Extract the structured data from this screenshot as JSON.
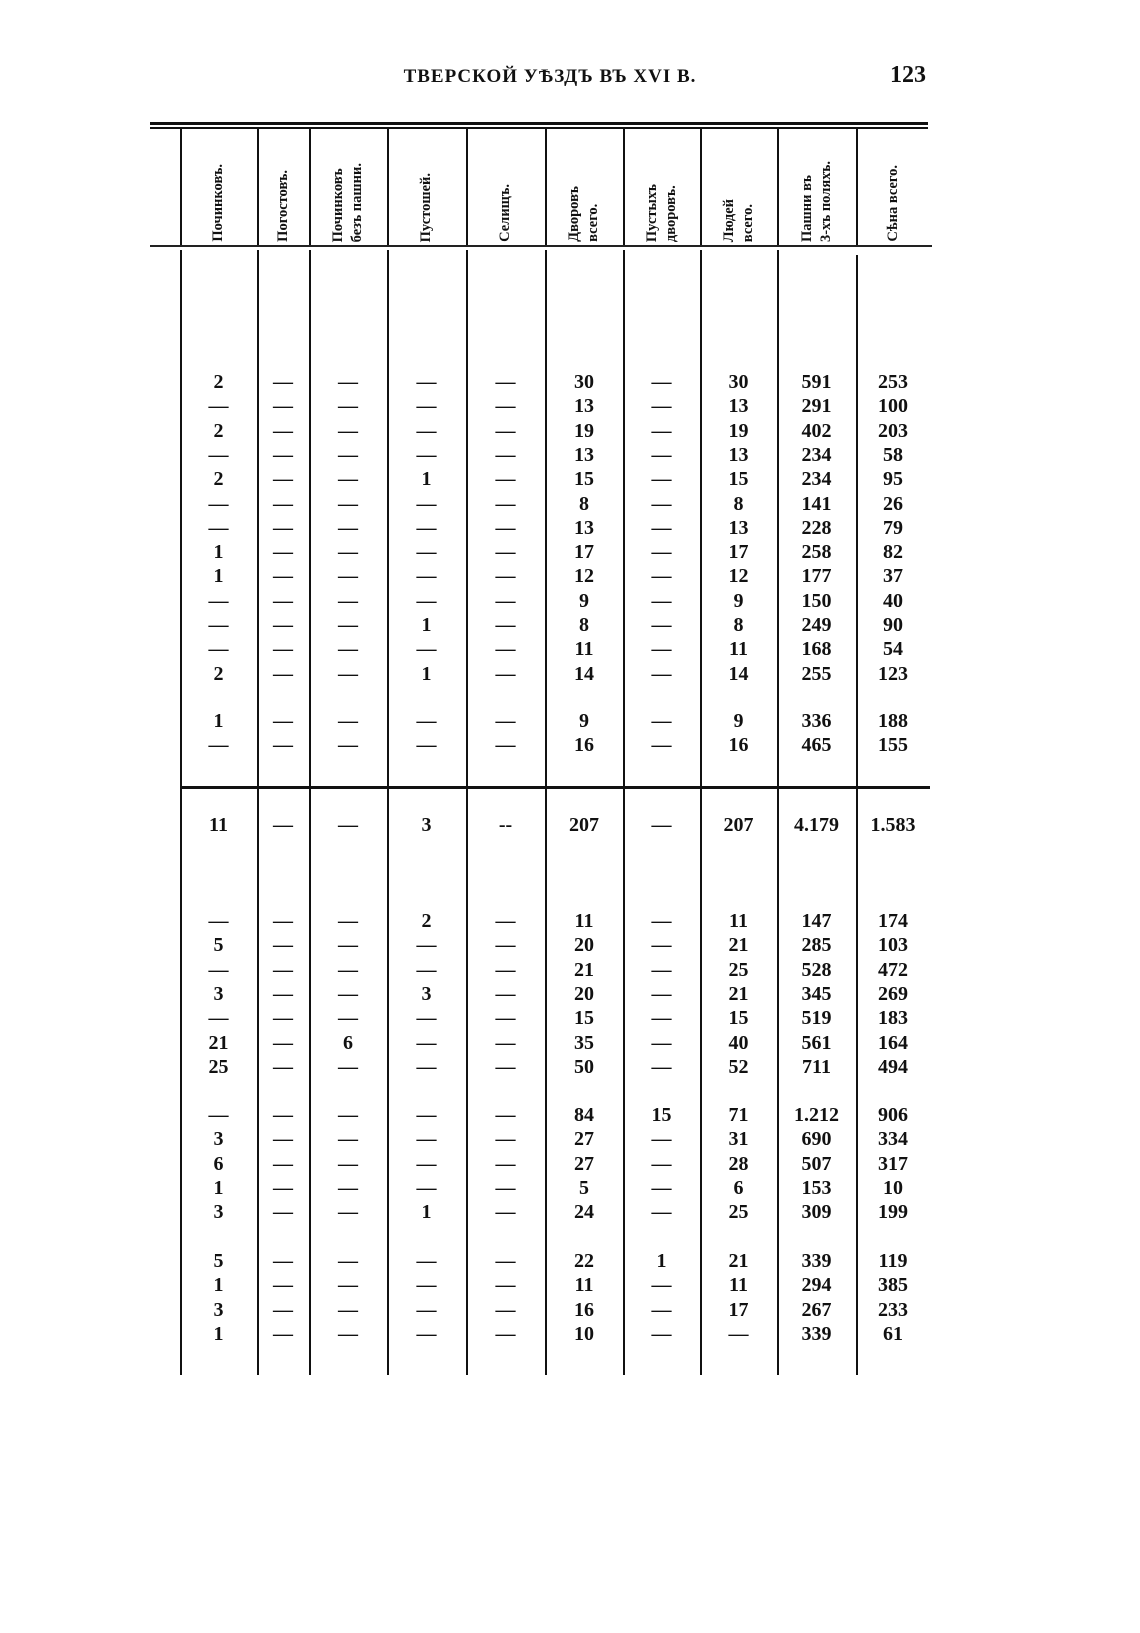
{
  "header": {
    "running_title": "ТВЕРСКОЙ УѢЗДЪ ВЪ XVI В.",
    "page_number": "123"
  },
  "columns": [
    "Починковъ.",
    "Погостовъ.",
    "Починковъ\nбезъ пашни.",
    "Пустошей.",
    "Селищъ.",
    "Дворовъ\nвсего.",
    "Пустыхъ\nдворовъ.",
    "Людей\nвсего.",
    "Пашни въ\n3-хъ поляхъ.",
    "Сѣна всего."
  ],
  "groups": [
    [
      [
        "2",
        "—",
        "—",
        "—",
        "—",
        "30",
        "—",
        "30",
        "591",
        "253"
      ],
      [
        "—",
        "—",
        "—",
        "—",
        "—",
        "13",
        "—",
        "13",
        "291",
        "100"
      ],
      [
        "2",
        "—",
        "—",
        "—",
        "—",
        "19",
        "—",
        "19",
        "402",
        "203"
      ],
      [
        "—",
        "—",
        "—",
        "—",
        "—",
        "13",
        "—",
        "13",
        "234",
        "58"
      ],
      [
        "2",
        "—",
        "—",
        "1",
        "—",
        "15",
        "—",
        "15",
        "234",
        "95"
      ],
      [
        "—",
        "—",
        "—",
        "—",
        "—",
        "8",
        "—",
        "8",
        "141",
        "26"
      ],
      [
        "—",
        "—",
        "—",
        "—",
        "—",
        "13",
        "—",
        "13",
        "228",
        "79"
      ],
      [
        "1",
        "—",
        "—",
        "—",
        "—",
        "17",
        "—",
        "17",
        "258",
        "82"
      ],
      [
        "1",
        "—",
        "—",
        "—",
        "—",
        "12",
        "—",
        "12",
        "177",
        "37"
      ],
      [
        "—",
        "—",
        "—",
        "—",
        "—",
        "9",
        "—",
        "9",
        "150",
        "40"
      ],
      [
        "—",
        "—",
        "—",
        "1",
        "—",
        "8",
        "—",
        "8",
        "249",
        "90"
      ],
      [
        "—",
        "—",
        "—",
        "—",
        "—",
        "11",
        "—",
        "11",
        "168",
        "54"
      ],
      [
        "2",
        "—",
        "—",
        "1",
        "—",
        "14",
        "—",
        "14",
        "255",
        "123"
      ]
    ],
    [
      [
        "1",
        "—",
        "—",
        "—",
        "—",
        "9",
        "—",
        "9",
        "336",
        "188"
      ],
      [
        "—",
        "—",
        "—",
        "—",
        "—",
        "16",
        "—",
        "16",
        "465",
        "155"
      ]
    ],
    [
      [
        "11",
        "—",
        "—",
        "3",
        "--",
        "207",
        "—",
        "207",
        "4.179",
        "1.583"
      ]
    ],
    [
      [
        "—",
        "—",
        "—",
        "2",
        "—",
        "11",
        "—",
        "11",
        "147",
        "174"
      ],
      [
        "5",
        "—",
        "—",
        "—",
        "—",
        "20",
        "—",
        "21",
        "285",
        "103"
      ],
      [
        "—",
        "—",
        "—",
        "—",
        "—",
        "21",
        "—",
        "25",
        "528",
        "472"
      ],
      [
        "3",
        "—",
        "—",
        "3",
        "—",
        "20",
        "—",
        "21",
        "345",
        "269"
      ],
      [
        "—",
        "—",
        "—",
        "—",
        "—",
        "15",
        "—",
        "15",
        "519",
        "183"
      ],
      [
        "21",
        "—",
        "6",
        "—",
        "—",
        "35",
        "—",
        "40",
        "561",
        "164"
      ],
      [
        "25",
        "—",
        "—",
        "—",
        "—",
        "50",
        "—",
        "52",
        "711",
        "494"
      ]
    ],
    [
      [
        "—",
        "—",
        "—",
        "—",
        "—",
        "84",
        "15",
        "71",
        "1.212",
        "906"
      ],
      [
        "3",
        "—",
        "—",
        "—",
        "—",
        "27",
        "—",
        "31",
        "690",
        "334"
      ],
      [
        "6",
        "—",
        "—",
        "—",
        "—",
        "27",
        "—",
        "28",
        "507",
        "317"
      ],
      [
        "1",
        "—",
        "—",
        "—",
        "—",
        "5",
        "—",
        "6",
        "153",
        "10"
      ],
      [
        "3",
        "—",
        "—",
        "1",
        "—",
        "24",
        "—",
        "25",
        "309",
        "199"
      ]
    ],
    [
      [
        "5",
        "—",
        "—",
        "—",
        "—",
        "22",
        "1",
        "21",
        "339",
        "119"
      ],
      [
        "1",
        "—",
        "—",
        "—",
        "—",
        "11",
        "—",
        "11",
        "294",
        "385"
      ],
      [
        "3",
        "—",
        "—",
        "—",
        "—",
        "16",
        "—",
        "17",
        "267",
        "233"
      ],
      [
        "1",
        "—",
        "—",
        "—",
        "—",
        "10",
        "—",
        "—",
        "339",
        "61"
      ]
    ]
  ]
}
